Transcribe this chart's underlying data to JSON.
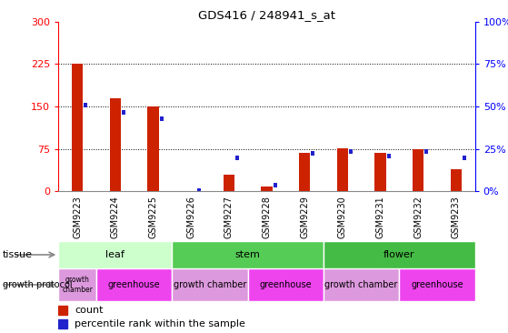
{
  "title": "GDS416 / 248941_s_at",
  "samples": [
    "GSM9223",
    "GSM9224",
    "GSM9225",
    "GSM9226",
    "GSM9227",
    "GSM9228",
    "GSM9229",
    "GSM9230",
    "GSM9231",
    "GSM9232",
    "GSM9233"
  ],
  "counts": [
    226,
    165,
    150,
    0,
    30,
    8,
    68,
    76,
    68,
    74,
    40
  ],
  "percentiles": [
    52,
    48,
    44,
    2,
    21,
    5,
    24,
    25,
    22,
    25,
    21
  ],
  "ylim_left": [
    0,
    300
  ],
  "ylim_right": [
    0,
    100
  ],
  "yticks_left": [
    0,
    75,
    150,
    225,
    300
  ],
  "yticks_right": [
    0,
    25,
    50,
    75,
    100
  ],
  "hlines": [
    75,
    150,
    225
  ],
  "bar_color": "#cc2200",
  "dot_color": "#2222cc",
  "tissue_groups": [
    {
      "label": "leaf",
      "start": 0,
      "end": 3,
      "color": "#ccffcc"
    },
    {
      "label": "stem",
      "start": 3,
      "end": 7,
      "color": "#55cc55"
    },
    {
      "label": "flower",
      "start": 7,
      "end": 11,
      "color": "#44bb44"
    }
  ],
  "growth_groups": [
    {
      "label": "growth\nchamber",
      "start": 0,
      "end": 1,
      "color": "#cc88cc"
    },
    {
      "label": "greenhouse",
      "start": 1,
      "end": 3,
      "color": "#dd44dd"
    },
    {
      "label": "growth chamber",
      "start": 3,
      "end": 5,
      "color": "#cc88cc"
    },
    {
      "label": "greenhouse",
      "start": 5,
      "end": 7,
      "color": "#dd44dd"
    },
    {
      "label": "growth chamber",
      "start": 7,
      "end": 9,
      "color": "#cc88cc"
    },
    {
      "label": "greenhouse",
      "start": 9,
      "end": 11,
      "color": "#dd44dd"
    }
  ],
  "legend_count_color": "#cc2200",
  "legend_pct_color": "#2222cc",
  "xlabel_bg": "#cccccc",
  "plot_bg": "#ffffff"
}
